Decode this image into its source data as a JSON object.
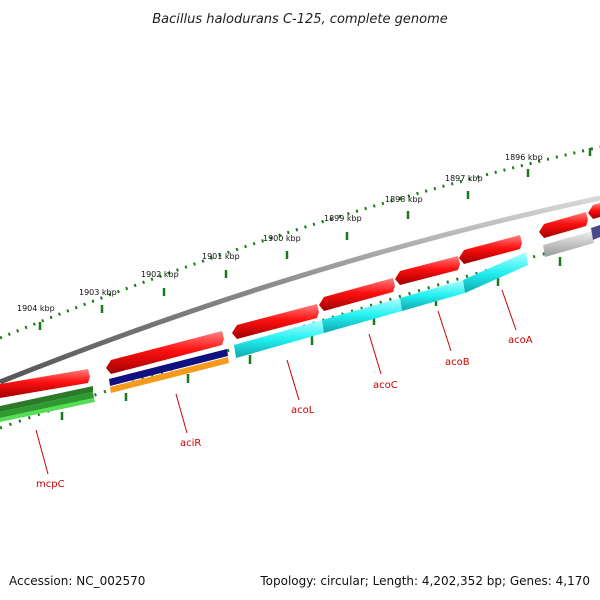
{
  "title": "Bacillus halodurans C-125, complete genome",
  "footer": {
    "accession": "Accession: NC_002570",
    "topology": "Topology: circular; Length: 4,202,352 bp; Genes: 4,170"
  },
  "kbp_labels": [
    "1904 kbp",
    "1903 kbp",
    "1902 kbp",
    "1901 kbp",
    "1900 kbp",
    "1899 kbp",
    "1898 kbp",
    "1897 kbp",
    "1896 kbp"
  ],
  "gene_labels": [
    "mcpC",
    "aciR",
    "acoL",
    "acoC",
    "acoB",
    "acoA"
  ],
  "colors": {
    "red": "#ee1111",
    "cyan": "#22f0f0",
    "navy": "#101080",
    "orange": "#f59a1a",
    "green": "#2a8a2a",
    "lightgreen": "#44d444",
    "gray": "#888888",
    "lightgray": "#bbbbbb",
    "slate": "#4a4a88",
    "tick": "#1a7a1a",
    "label": "#cc0000"
  }
}
